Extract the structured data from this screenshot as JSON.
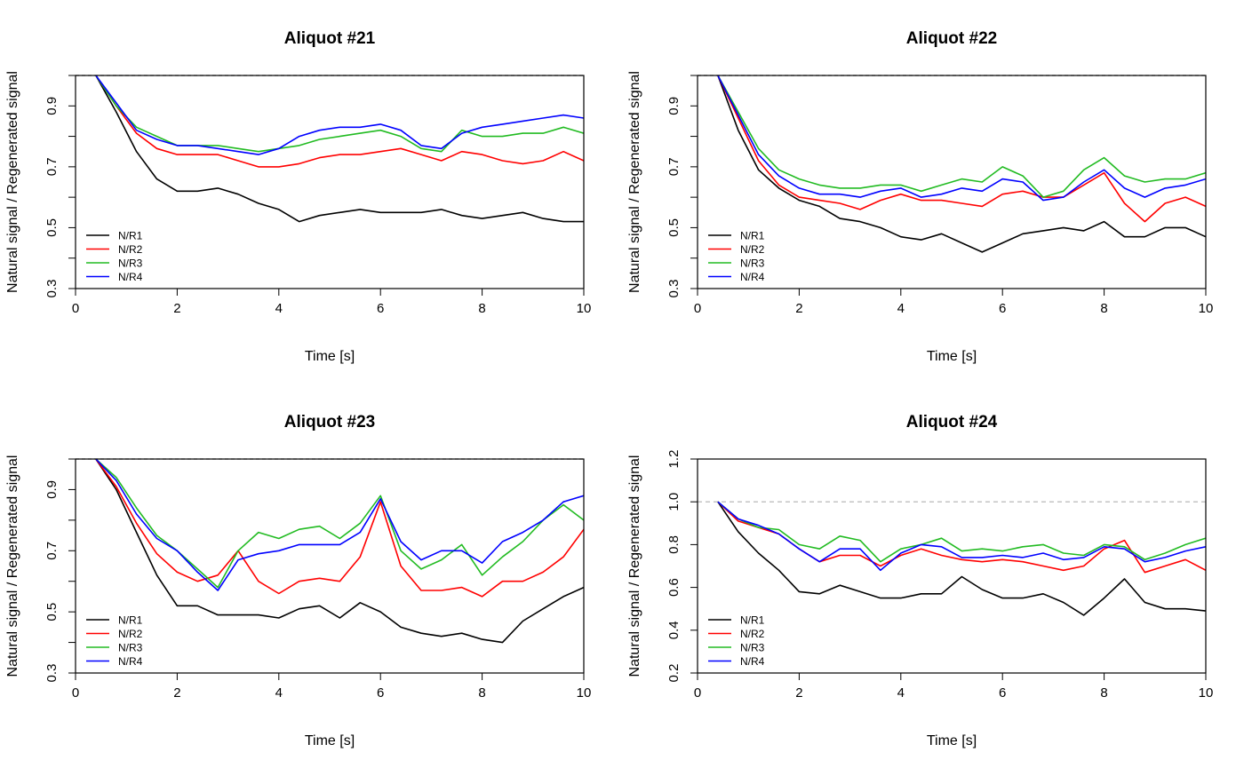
{
  "chart_data": [
    {
      "type": "line",
      "title": "Aliquot #21",
      "xlabel": "Time [s]",
      "ylabel": "Natural signal / Regenerated signal",
      "xlim": [
        0,
        10
      ],
      "ylim": [
        0.3,
        1.0
      ],
      "xticks": [
        "0",
        "2",
        "4",
        "6",
        "8",
        "10"
      ],
      "yticks": [
        "0.3",
        "0.5",
        "0.7",
        "0.9"
      ],
      "reference_line": 1.0,
      "legend_position": "bottom-left",
      "x": [
        0.4,
        0.8,
        1.2,
        1.6,
        2.0,
        2.4,
        2.8,
        3.2,
        3.6,
        4.0,
        4.4,
        4.8,
        5.2,
        5.6,
        6.0,
        6.4,
        6.8,
        7.2,
        7.6,
        8.0,
        8.4,
        8.8,
        9.2,
        9.6,
        10.0
      ],
      "series": [
        {
          "name": "N/R1",
          "color": "#000000",
          "values": [
            1.0,
            0.88,
            0.75,
            0.66,
            0.62,
            0.62,
            0.63,
            0.61,
            0.58,
            0.56,
            0.52,
            0.54,
            0.55,
            0.56,
            0.55,
            0.55,
            0.55,
            0.56,
            0.54,
            0.53,
            0.54,
            0.55,
            0.53,
            0.52,
            0.52
          ]
        },
        {
          "name": "N/R2",
          "color": "#ff0000",
          "values": [
            1.0,
            0.9,
            0.81,
            0.76,
            0.74,
            0.74,
            0.74,
            0.72,
            0.7,
            0.7,
            0.71,
            0.73,
            0.74,
            0.74,
            0.75,
            0.76,
            0.74,
            0.72,
            0.75,
            0.74,
            0.72,
            0.71,
            0.72,
            0.75,
            0.72
          ]
        },
        {
          "name": "N/R3",
          "color": "#22bb22",
          "values": [
            1.0,
            0.9,
            0.83,
            0.8,
            0.77,
            0.77,
            0.77,
            0.76,
            0.75,
            0.76,
            0.77,
            0.79,
            0.8,
            0.81,
            0.82,
            0.8,
            0.76,
            0.75,
            0.82,
            0.8,
            0.8,
            0.81,
            0.81,
            0.83,
            0.81
          ]
        },
        {
          "name": "N/R4",
          "color": "#0000ff",
          "values": [
            1.0,
            0.91,
            0.82,
            0.79,
            0.77,
            0.77,
            0.76,
            0.75,
            0.74,
            0.76,
            0.8,
            0.82,
            0.83,
            0.83,
            0.84,
            0.82,
            0.77,
            0.76,
            0.81,
            0.83,
            0.84,
            0.85,
            0.86,
            0.87,
            0.86
          ]
        }
      ]
    },
    {
      "type": "line",
      "title": "Aliquot #22",
      "xlabel": "Time [s]",
      "ylabel": "Natural signal / Regenerated signal",
      "xlim": [
        0,
        10
      ],
      "ylim": [
        0.3,
        1.0
      ],
      "xticks": [
        "0",
        "2",
        "4",
        "6",
        "8",
        "10"
      ],
      "yticks": [
        "0.3",
        "0.5",
        "0.7",
        "0.9"
      ],
      "reference_line": 1.0,
      "legend_position": "bottom-left",
      "x": [
        0.4,
        0.8,
        1.2,
        1.6,
        2.0,
        2.4,
        2.8,
        3.2,
        3.6,
        4.0,
        4.4,
        4.8,
        5.2,
        5.6,
        6.0,
        6.4,
        6.8,
        7.2,
        7.6,
        8.0,
        8.4,
        8.8,
        9.2,
        9.6,
        10.0
      ],
      "series": [
        {
          "name": "N/R1",
          "color": "#000000",
          "values": [
            1.0,
            0.82,
            0.69,
            0.63,
            0.59,
            0.57,
            0.53,
            0.52,
            0.5,
            0.47,
            0.46,
            0.48,
            0.45,
            0.42,
            0.45,
            0.48,
            0.49,
            0.5,
            0.49,
            0.52,
            0.47,
            0.47,
            0.5,
            0.5,
            0.47
          ]
        },
        {
          "name": "N/R2",
          "color": "#ff0000",
          "values": [
            1.0,
            0.86,
            0.72,
            0.64,
            0.6,
            0.59,
            0.58,
            0.56,
            0.59,
            0.61,
            0.59,
            0.59,
            0.58,
            0.57,
            0.61,
            0.62,
            0.6,
            0.6,
            0.64,
            0.68,
            0.58,
            0.52,
            0.58,
            0.6,
            0.57
          ]
        },
        {
          "name": "N/R3",
          "color": "#22bb22",
          "values": [
            1.0,
            0.88,
            0.76,
            0.69,
            0.66,
            0.64,
            0.63,
            0.63,
            0.64,
            0.64,
            0.62,
            0.64,
            0.66,
            0.65,
            0.7,
            0.67,
            0.6,
            0.62,
            0.69,
            0.73,
            0.67,
            0.65,
            0.66,
            0.66,
            0.68
          ]
        },
        {
          "name": "N/R4",
          "color": "#0000ff",
          "values": [
            1.0,
            0.87,
            0.74,
            0.67,
            0.63,
            0.61,
            0.61,
            0.6,
            0.62,
            0.63,
            0.6,
            0.61,
            0.63,
            0.62,
            0.66,
            0.65,
            0.59,
            0.6,
            0.65,
            0.69,
            0.63,
            0.6,
            0.63,
            0.64,
            0.66
          ]
        }
      ]
    },
    {
      "type": "line",
      "title": "Aliquot #23",
      "xlabel": "Time [s]",
      "ylabel": "Natural signal / Regenerated signal",
      "xlim": [
        0,
        10
      ],
      "ylim": [
        0.3,
        1.0
      ],
      "xticks": [
        "0",
        "2",
        "4",
        "6",
        "8",
        "10"
      ],
      "yticks": [
        "0.3",
        "0.5",
        "0.7",
        "0.9"
      ],
      "reference_line": 1.0,
      "legend_position": "bottom-left",
      "x": [
        0.4,
        0.8,
        1.2,
        1.6,
        2.0,
        2.4,
        2.8,
        3.2,
        3.6,
        4.0,
        4.4,
        4.8,
        5.2,
        5.6,
        6.0,
        6.4,
        6.8,
        7.2,
        7.6,
        8.0,
        8.4,
        8.8,
        9.2,
        9.6,
        10.0
      ],
      "series": [
        {
          "name": "N/R1",
          "color": "#000000",
          "values": [
            1.0,
            0.9,
            0.76,
            0.62,
            0.52,
            0.52,
            0.49,
            0.49,
            0.49,
            0.48,
            0.51,
            0.52,
            0.48,
            0.53,
            0.5,
            0.45,
            0.43,
            0.42,
            0.43,
            0.41,
            0.4,
            0.47,
            0.51,
            0.55,
            0.58
          ]
        },
        {
          "name": "N/R2",
          "color": "#ff0000",
          "values": [
            1.0,
            0.91,
            0.79,
            0.69,
            0.63,
            0.6,
            0.62,
            0.7,
            0.6,
            0.56,
            0.6,
            0.61,
            0.6,
            0.68,
            0.86,
            0.65,
            0.57,
            0.57,
            0.58,
            0.55,
            0.6,
            0.6,
            0.63,
            0.68,
            0.77
          ]
        },
        {
          "name": "N/R3",
          "color": "#22bb22",
          "values": [
            1.0,
            0.94,
            0.84,
            0.75,
            0.7,
            0.64,
            0.58,
            0.7,
            0.76,
            0.74,
            0.77,
            0.78,
            0.74,
            0.79,
            0.88,
            0.7,
            0.64,
            0.67,
            0.72,
            0.62,
            0.68,
            0.73,
            0.8,
            0.85,
            0.8
          ]
        },
        {
          "name": "N/R4",
          "color": "#0000ff",
          "values": [
            1.0,
            0.93,
            0.82,
            0.74,
            0.7,
            0.63,
            0.57,
            0.67,
            0.69,
            0.7,
            0.72,
            0.72,
            0.72,
            0.76,
            0.87,
            0.73,
            0.67,
            0.7,
            0.7,
            0.66,
            0.73,
            0.76,
            0.8,
            0.86,
            0.88
          ]
        }
      ]
    },
    {
      "type": "line",
      "title": "Aliquot #24",
      "xlabel": "Time [s]",
      "ylabel": "Natural signal / Regenerated signal",
      "xlim": [
        0,
        10
      ],
      "ylim": [
        0.2,
        1.2
      ],
      "xticks": [
        "0",
        "2",
        "4",
        "6",
        "8",
        "10"
      ],
      "yticks": [
        "0.2",
        "0.4",
        "0.6",
        "0.8",
        "1.0",
        "1.2"
      ],
      "reference_line": 1.0,
      "legend_position": "bottom-left",
      "x": [
        0.4,
        0.8,
        1.2,
        1.6,
        2.0,
        2.4,
        2.8,
        3.2,
        3.6,
        4.0,
        4.4,
        4.8,
        5.2,
        5.6,
        6.0,
        6.4,
        6.8,
        7.2,
        7.6,
        8.0,
        8.4,
        8.8,
        9.2,
        9.6,
        10.0
      ],
      "series": [
        {
          "name": "N/R1",
          "color": "#000000",
          "values": [
            1.0,
            0.86,
            0.76,
            0.68,
            0.58,
            0.57,
            0.61,
            0.58,
            0.55,
            0.55,
            0.57,
            0.57,
            0.65,
            0.59,
            0.55,
            0.55,
            0.57,
            0.53,
            0.47,
            0.55,
            0.64,
            0.53,
            0.5,
            0.5,
            0.49
          ]
        },
        {
          "name": "N/R2",
          "color": "#ff0000",
          "values": [
            1.0,
            0.91,
            0.88,
            0.85,
            0.78,
            0.72,
            0.75,
            0.75,
            0.7,
            0.75,
            0.78,
            0.75,
            0.73,
            0.72,
            0.73,
            0.72,
            0.7,
            0.68,
            0.7,
            0.78,
            0.82,
            0.67,
            0.7,
            0.73,
            0.68
          ]
        },
        {
          "name": "N/R3",
          "color": "#22bb22",
          "values": [
            1.0,
            0.92,
            0.88,
            0.87,
            0.8,
            0.78,
            0.84,
            0.82,
            0.72,
            0.78,
            0.8,
            0.83,
            0.77,
            0.78,
            0.77,
            0.79,
            0.8,
            0.76,
            0.75,
            0.8,
            0.79,
            0.73,
            0.76,
            0.8,
            0.83
          ]
        },
        {
          "name": "N/R4",
          "color": "#0000ff",
          "values": [
            1.0,
            0.92,
            0.89,
            0.85,
            0.78,
            0.72,
            0.78,
            0.78,
            0.68,
            0.76,
            0.8,
            0.79,
            0.74,
            0.74,
            0.75,
            0.74,
            0.76,
            0.73,
            0.74,
            0.79,
            0.78,
            0.72,
            0.74,
            0.77,
            0.79
          ]
        }
      ]
    }
  ]
}
